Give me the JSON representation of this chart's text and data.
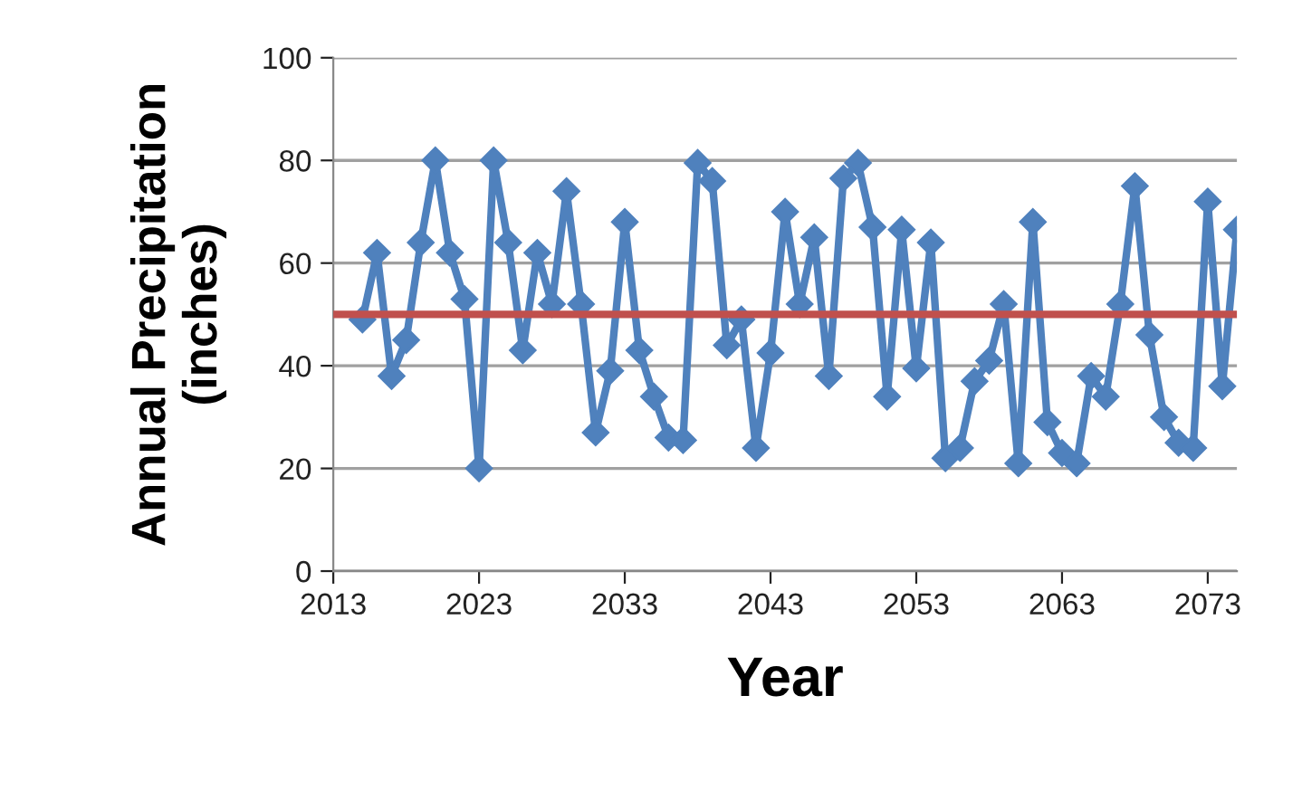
{
  "chart_data": {
    "type": "line",
    "xlabel": "Year",
    "ylabel": "Annual Precipitation\n(inches)",
    "x": [
      2015,
      2016,
      2017,
      2018,
      2019,
      2020,
      2021,
      2022,
      2023,
      2024,
      2025,
      2026,
      2027,
      2028,
      2029,
      2030,
      2031,
      2032,
      2033,
      2034,
      2035,
      2036,
      2037,
      2038,
      2039,
      2040,
      2041,
      2042,
      2043,
      2044,
      2045,
      2046,
      2047,
      2048,
      2049,
      2050,
      2051,
      2052,
      2053,
      2054,
      2055,
      2056,
      2057,
      2058,
      2059,
      2060,
      2061,
      2062,
      2063,
      2064,
      2065,
      2066,
      2067,
      2068,
      2069,
      2070,
      2071,
      2072,
      2073,
      2074,
      2075
    ],
    "series": [
      {
        "color": "#4f81bd",
        "values": [
          49,
          62,
          38,
          45,
          64,
          80,
          62,
          53,
          20,
          80,
          64,
          43,
          62,
          52,
          74,
          52,
          27,
          39,
          68,
          43,
          34,
          26,
          25.5,
          79.5,
          76,
          44,
          49,
          24,
          42.5,
          70,
          52,
          65,
          38,
          76.5,
          79.5,
          67,
          34,
          66.5,
          39.5,
          64,
          22,
          24,
          37,
          41,
          52,
          21,
          68,
          29,
          23,
          21,
          38,
          34,
          52,
          75,
          46,
          30,
          25,
          24,
          72,
          36,
          66.5
        ]
      }
    ],
    "marker": "diamond",
    "line_style": "solid",
    "ref_lines": [
      {
        "axis": "y",
        "value": 50,
        "color": "#c0504d"
      }
    ],
    "xlim": [
      2013,
      2075
    ],
    "xticks": [
      2013,
      2023,
      2033,
      2043,
      2053,
      2063,
      2073
    ],
    "ylim": [
      0,
      100
    ],
    "yticks": [
      0,
      20,
      40,
      60,
      80,
      100
    ],
    "grid": "y"
  }
}
